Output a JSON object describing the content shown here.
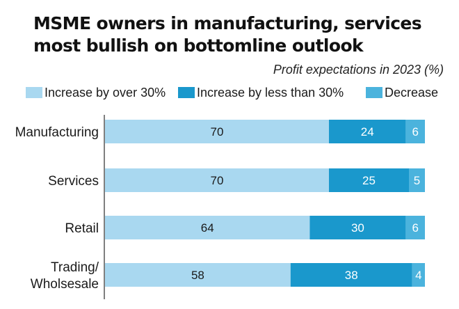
{
  "chart_data": {
    "type": "bar",
    "orientation": "horizontal",
    "stacked": true,
    "title": [
      "MSME owners in manufacturing, services",
      "most bullish on bottomline outlook"
    ],
    "subtitle": "Profit expectations in 2023 (%)",
    "categories": [
      "Manufacturing",
      "Services",
      "Retail",
      "Trading/\nWholsesale"
    ],
    "series": [
      {
        "name": "Increase by over 30%",
        "values": [
          70,
          70,
          64,
          58
        ],
        "color": "#a9d8f0",
        "label_color": "#1a1a1a"
      },
      {
        "name": "Increase by less than 30%",
        "values": [
          24,
          25,
          30,
          38
        ],
        "color": "#1a98cc",
        "label_color": "#ffffff"
      },
      {
        "name": "Decrease",
        "values": [
          6,
          5,
          6,
          4
        ],
        "color": "#4bb3dd",
        "label_color": "#ffffff"
      }
    ],
    "xlim": [
      0,
      100
    ],
    "grid": false,
    "legend": "top"
  }
}
